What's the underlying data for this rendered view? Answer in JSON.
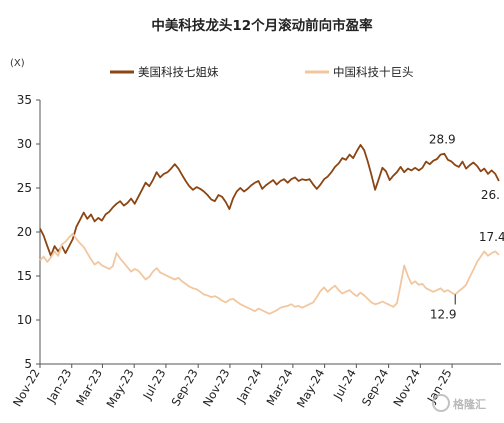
{
  "chart_data": {
    "type": "line",
    "title": "中美科技龙头12个月滚动前向市盈率",
    "unit_label": "(X)",
    "ylim": [
      5,
      35
    ],
    "yticks": [
      5,
      10,
      15,
      20,
      25,
      30,
      35
    ],
    "xlim": [
      "2022-11-01",
      "2025-04-05"
    ],
    "xticks": [
      {
        "date": "2022-11-01",
        "label": "Nov-22"
      },
      {
        "date": "2023-01-01",
        "label": "Jan-23"
      },
      {
        "date": "2023-03-01",
        "label": "Mar-23"
      },
      {
        "date": "2023-05-01",
        "label": "May-23"
      },
      {
        "date": "2023-07-01",
        "label": "Jul-23"
      },
      {
        "date": "2023-09-01",
        "label": "Sep-23"
      },
      {
        "date": "2023-11-01",
        "label": "Nov-23"
      },
      {
        "date": "2024-01-01",
        "label": "Jan-24"
      },
      {
        "date": "2024-03-01",
        "label": "Mar-24"
      },
      {
        "date": "2024-05-01",
        "label": "May-24"
      },
      {
        "date": "2024-07-01",
        "label": "Jul-24"
      },
      {
        "date": "2024-09-01",
        "label": "Sep-24"
      },
      {
        "date": "2024-11-01",
        "label": "Nov-24"
      },
      {
        "date": "2025-01-01",
        "label": "Jan-25"
      }
    ],
    "grid": false,
    "legend_position": "top",
    "series": [
      {
        "name": "美国科技七姐妹",
        "color": "#8B4513",
        "points": [
          [
            "2022-11-01",
            20.4
          ],
          [
            "2022-11-08",
            19.6
          ],
          [
            "2022-11-15",
            18.4
          ],
          [
            "2022-11-22",
            17.3
          ],
          [
            "2022-11-29",
            18.4
          ],
          [
            "2022-12-06",
            17.8
          ],
          [
            "2022-12-13",
            18.4
          ],
          [
            "2022-12-20",
            17.6
          ],
          [
            "2022-12-27",
            18.4
          ],
          [
            "2023-01-03",
            19.2
          ],
          [
            "2023-01-10",
            20.6
          ],
          [
            "2023-01-17",
            21.4
          ],
          [
            "2023-01-24",
            22.2
          ],
          [
            "2023-01-31",
            21.5
          ],
          [
            "2023-02-07",
            22.0
          ],
          [
            "2023-02-14",
            21.2
          ],
          [
            "2023-02-21",
            21.6
          ],
          [
            "2023-02-28",
            21.3
          ],
          [
            "2023-03-07",
            22.0
          ],
          [
            "2023-03-14",
            22.3
          ],
          [
            "2023-03-21",
            22.8
          ],
          [
            "2023-03-28",
            23.2
          ],
          [
            "2023-04-04",
            23.5
          ],
          [
            "2023-04-11",
            23.0
          ],
          [
            "2023-04-18",
            23.3
          ],
          [
            "2023-04-25",
            23.8
          ],
          [
            "2023-05-02",
            23.2
          ],
          [
            "2023-05-09",
            24.0
          ],
          [
            "2023-05-16",
            24.8
          ],
          [
            "2023-05-23",
            25.6
          ],
          [
            "2023-05-30",
            25.2
          ],
          [
            "2023-06-06",
            25.9
          ],
          [
            "2023-06-13",
            26.8
          ],
          [
            "2023-06-20",
            26.2
          ],
          [
            "2023-06-27",
            26.6
          ],
          [
            "2023-07-04",
            26.8
          ],
          [
            "2023-07-11",
            27.2
          ],
          [
            "2023-07-18",
            27.7
          ],
          [
            "2023-07-25",
            27.2
          ],
          [
            "2023-08-01",
            26.5
          ],
          [
            "2023-08-08",
            25.8
          ],
          [
            "2023-08-15",
            25.2
          ],
          [
            "2023-08-22",
            24.8
          ],
          [
            "2023-08-29",
            25.1
          ],
          [
            "2023-09-05",
            24.9
          ],
          [
            "2023-09-12",
            24.6
          ],
          [
            "2023-09-19",
            24.2
          ],
          [
            "2023-09-26",
            23.7
          ],
          [
            "2023-10-03",
            23.5
          ],
          [
            "2023-10-10",
            24.2
          ],
          [
            "2023-10-17",
            24.0
          ],
          [
            "2023-10-24",
            23.4
          ],
          [
            "2023-10-31",
            22.6
          ],
          [
            "2023-11-07",
            23.8
          ],
          [
            "2023-11-14",
            24.6
          ],
          [
            "2023-11-21",
            25.0
          ],
          [
            "2023-11-28",
            24.6
          ],
          [
            "2023-12-05",
            24.9
          ],
          [
            "2023-12-12",
            25.3
          ],
          [
            "2023-12-19",
            25.6
          ],
          [
            "2023-12-26",
            25.8
          ],
          [
            "2024-01-02",
            24.9
          ],
          [
            "2024-01-09",
            25.3
          ],
          [
            "2024-01-16",
            25.6
          ],
          [
            "2024-01-23",
            25.9
          ],
          [
            "2024-01-30",
            25.4
          ],
          [
            "2024-02-06",
            25.8
          ],
          [
            "2024-02-13",
            26.0
          ],
          [
            "2024-02-20",
            25.6
          ],
          [
            "2024-02-27",
            26.0
          ],
          [
            "2024-03-05",
            26.2
          ],
          [
            "2024-03-12",
            25.8
          ],
          [
            "2024-03-19",
            26.0
          ],
          [
            "2024-03-26",
            25.9
          ],
          [
            "2024-04-02",
            26.0
          ],
          [
            "2024-04-09",
            25.4
          ],
          [
            "2024-04-16",
            24.9
          ],
          [
            "2024-04-23",
            25.4
          ],
          [
            "2024-04-30",
            26.0
          ],
          [
            "2024-05-07",
            26.3
          ],
          [
            "2024-05-14",
            26.8
          ],
          [
            "2024-05-21",
            27.4
          ],
          [
            "2024-05-28",
            27.8
          ],
          [
            "2024-06-04",
            28.4
          ],
          [
            "2024-06-11",
            28.2
          ],
          [
            "2024-06-18",
            28.8
          ],
          [
            "2024-06-25",
            28.4
          ],
          [
            "2024-07-02",
            29.2
          ],
          [
            "2024-07-09",
            29.9
          ],
          [
            "2024-07-16",
            29.3
          ],
          [
            "2024-07-23",
            28.0
          ],
          [
            "2024-07-30",
            26.5
          ],
          [
            "2024-08-06",
            24.8
          ],
          [
            "2024-08-13",
            26.0
          ],
          [
            "2024-08-20",
            27.3
          ],
          [
            "2024-08-27",
            26.9
          ],
          [
            "2024-09-03",
            25.9
          ],
          [
            "2024-09-10",
            26.4
          ],
          [
            "2024-09-17",
            26.8
          ],
          [
            "2024-09-24",
            27.4
          ],
          [
            "2024-10-01",
            26.8
          ],
          [
            "2024-10-08",
            27.2
          ],
          [
            "2024-10-15",
            27.0
          ],
          [
            "2024-10-22",
            27.3
          ],
          [
            "2024-10-29",
            27.0
          ],
          [
            "2024-11-05",
            27.3
          ],
          [
            "2024-11-12",
            28.0
          ],
          [
            "2024-11-19",
            27.7
          ],
          [
            "2024-11-26",
            28.1
          ],
          [
            "2024-12-03",
            28.3
          ],
          [
            "2024-12-10",
            28.8
          ],
          [
            "2024-12-17",
            28.9
          ],
          [
            "2024-12-24",
            28.2
          ],
          [
            "2024-12-31",
            28.0
          ],
          [
            "2025-01-07",
            27.6
          ],
          [
            "2025-01-14",
            27.4
          ],
          [
            "2025-01-21",
            28.0
          ],
          [
            "2025-01-28",
            27.2
          ],
          [
            "2025-02-04",
            27.6
          ],
          [
            "2025-02-11",
            27.9
          ],
          [
            "2025-02-18",
            27.5
          ],
          [
            "2025-02-25",
            26.9
          ],
          [
            "2025-03-04",
            27.2
          ],
          [
            "2025-03-11",
            26.6
          ],
          [
            "2025-03-18",
            27.0
          ],
          [
            "2025-03-25",
            26.6
          ],
          [
            "2025-04-01",
            25.8
          ]
        ]
      },
      {
        "name": "中国科技十巨头",
        "color": "#F2C7A0",
        "points": [
          [
            "2022-11-01",
            16.8
          ],
          [
            "2022-11-08",
            17.2
          ],
          [
            "2022-11-15",
            16.6
          ],
          [
            "2022-11-22",
            17.1
          ],
          [
            "2022-11-29",
            17.8
          ],
          [
            "2022-12-06",
            17.3
          ],
          [
            "2022-12-13",
            18.6
          ],
          [
            "2022-12-20",
            18.9
          ],
          [
            "2022-12-27",
            19.4
          ],
          [
            "2023-01-03",
            19.8
          ],
          [
            "2023-01-10",
            19.2
          ],
          [
            "2023-01-17",
            18.7
          ],
          [
            "2023-01-24",
            18.3
          ],
          [
            "2023-01-31",
            17.6
          ],
          [
            "2023-02-07",
            16.9
          ],
          [
            "2023-02-14",
            16.3
          ],
          [
            "2023-02-21",
            16.6
          ],
          [
            "2023-02-28",
            16.2
          ],
          [
            "2023-03-07",
            16.0
          ],
          [
            "2023-03-14",
            15.8
          ],
          [
            "2023-03-21",
            16.1
          ],
          [
            "2023-03-28",
            17.6
          ],
          [
            "2023-04-04",
            17.0
          ],
          [
            "2023-04-11",
            16.5
          ],
          [
            "2023-04-18",
            16.0
          ],
          [
            "2023-04-25",
            15.5
          ],
          [
            "2023-05-02",
            15.8
          ],
          [
            "2023-05-09",
            15.6
          ],
          [
            "2023-05-16",
            15.1
          ],
          [
            "2023-05-23",
            14.6
          ],
          [
            "2023-05-30",
            14.9
          ],
          [
            "2023-06-06",
            15.5
          ],
          [
            "2023-06-13",
            15.9
          ],
          [
            "2023-06-20",
            15.4
          ],
          [
            "2023-06-27",
            15.2
          ],
          [
            "2023-07-04",
            15.0
          ],
          [
            "2023-07-11",
            14.8
          ],
          [
            "2023-07-18",
            14.6
          ],
          [
            "2023-07-25",
            14.8
          ],
          [
            "2023-08-01",
            14.4
          ],
          [
            "2023-08-08",
            14.1
          ],
          [
            "2023-08-15",
            13.8
          ],
          [
            "2023-08-22",
            13.6
          ],
          [
            "2023-08-29",
            13.5
          ],
          [
            "2023-09-05",
            13.2
          ],
          [
            "2023-09-12",
            12.9
          ],
          [
            "2023-09-19",
            12.8
          ],
          [
            "2023-09-26",
            12.6
          ],
          [
            "2023-10-03",
            12.7
          ],
          [
            "2023-10-10",
            12.5
          ],
          [
            "2023-10-17",
            12.2
          ],
          [
            "2023-10-24",
            12.0
          ],
          [
            "2023-10-31",
            12.3
          ],
          [
            "2023-11-07",
            12.4
          ],
          [
            "2023-11-14",
            12.1
          ],
          [
            "2023-11-21",
            11.8
          ],
          [
            "2023-11-28",
            11.6
          ],
          [
            "2023-12-05",
            11.4
          ],
          [
            "2023-12-12",
            11.2
          ],
          [
            "2023-12-19",
            11.0
          ],
          [
            "2023-12-26",
            11.3
          ],
          [
            "2024-01-02",
            11.1
          ],
          [
            "2024-01-09",
            10.9
          ],
          [
            "2024-01-16",
            10.7
          ],
          [
            "2024-01-23",
            10.9
          ],
          [
            "2024-01-30",
            11.1
          ],
          [
            "2024-02-06",
            11.4
          ],
          [
            "2024-02-13",
            11.5
          ],
          [
            "2024-02-20",
            11.6
          ],
          [
            "2024-02-27",
            11.8
          ],
          [
            "2024-03-05",
            11.5
          ],
          [
            "2024-03-12",
            11.6
          ],
          [
            "2024-03-19",
            11.4
          ],
          [
            "2024-03-26",
            11.6
          ],
          [
            "2024-04-02",
            11.8
          ],
          [
            "2024-04-09",
            12.0
          ],
          [
            "2024-04-16",
            12.6
          ],
          [
            "2024-04-23",
            13.3
          ],
          [
            "2024-04-30",
            13.7
          ],
          [
            "2024-05-07",
            13.2
          ],
          [
            "2024-05-14",
            13.6
          ],
          [
            "2024-05-21",
            13.9
          ],
          [
            "2024-05-28",
            13.4
          ],
          [
            "2024-06-04",
            13.0
          ],
          [
            "2024-06-11",
            13.2
          ],
          [
            "2024-06-18",
            13.4
          ],
          [
            "2024-06-25",
            13.0
          ],
          [
            "2024-07-02",
            12.7
          ],
          [
            "2024-07-09",
            13.1
          ],
          [
            "2024-07-16",
            12.8
          ],
          [
            "2024-07-23",
            12.4
          ],
          [
            "2024-07-30",
            12.0
          ],
          [
            "2024-08-06",
            11.8
          ],
          [
            "2024-08-13",
            11.9
          ],
          [
            "2024-08-20",
            12.1
          ],
          [
            "2024-08-27",
            11.9
          ],
          [
            "2024-09-03",
            11.7
          ],
          [
            "2024-09-10",
            11.5
          ],
          [
            "2024-09-17",
            11.9
          ],
          [
            "2024-09-24",
            14.0
          ],
          [
            "2024-10-01",
            16.2
          ],
          [
            "2024-10-08",
            15.0
          ],
          [
            "2024-10-15",
            14.1
          ],
          [
            "2024-10-22",
            14.4
          ],
          [
            "2024-10-29",
            14.0
          ],
          [
            "2024-11-05",
            14.1
          ],
          [
            "2024-11-12",
            13.6
          ],
          [
            "2024-11-19",
            13.4
          ],
          [
            "2024-11-26",
            13.2
          ],
          [
            "2024-12-03",
            13.4
          ],
          [
            "2024-12-10",
            13.6
          ],
          [
            "2024-12-17",
            13.2
          ],
          [
            "2024-12-24",
            13.4
          ],
          [
            "2024-12-31",
            13.1
          ],
          [
            "2025-01-07",
            12.9
          ],
          [
            "2025-01-14",
            13.3
          ],
          [
            "2025-01-21",
            13.6
          ],
          [
            "2025-01-28",
            14.0
          ],
          [
            "2025-02-04",
            14.9
          ],
          [
            "2025-02-11",
            15.7
          ],
          [
            "2025-02-18",
            16.6
          ],
          [
            "2025-02-25",
            17.2
          ],
          [
            "2025-03-04",
            17.8
          ],
          [
            "2025-03-11",
            17.3
          ],
          [
            "2025-03-18",
            17.6
          ],
          [
            "2025-03-25",
            17.8
          ],
          [
            "2025-04-01",
            17.4
          ]
        ]
      }
    ],
    "annotations": [
      {
        "text": "28.9",
        "series": 0,
        "date": "2024-12-17",
        "value": 28.9
      },
      {
        "text": "26.",
        "series": 0,
        "date": "2025-04-01",
        "value": 25.8
      },
      {
        "text": "17.4",
        "series": 1,
        "date": "2025-04-01",
        "value": 17.4
      },
      {
        "text": "12.9",
        "series": 1,
        "date": "2025-01-07",
        "value": 12.9
      }
    ]
  },
  "watermark": "格隆汇",
  "colors": {
    "axis": "#555555",
    "text": "#222222"
  }
}
